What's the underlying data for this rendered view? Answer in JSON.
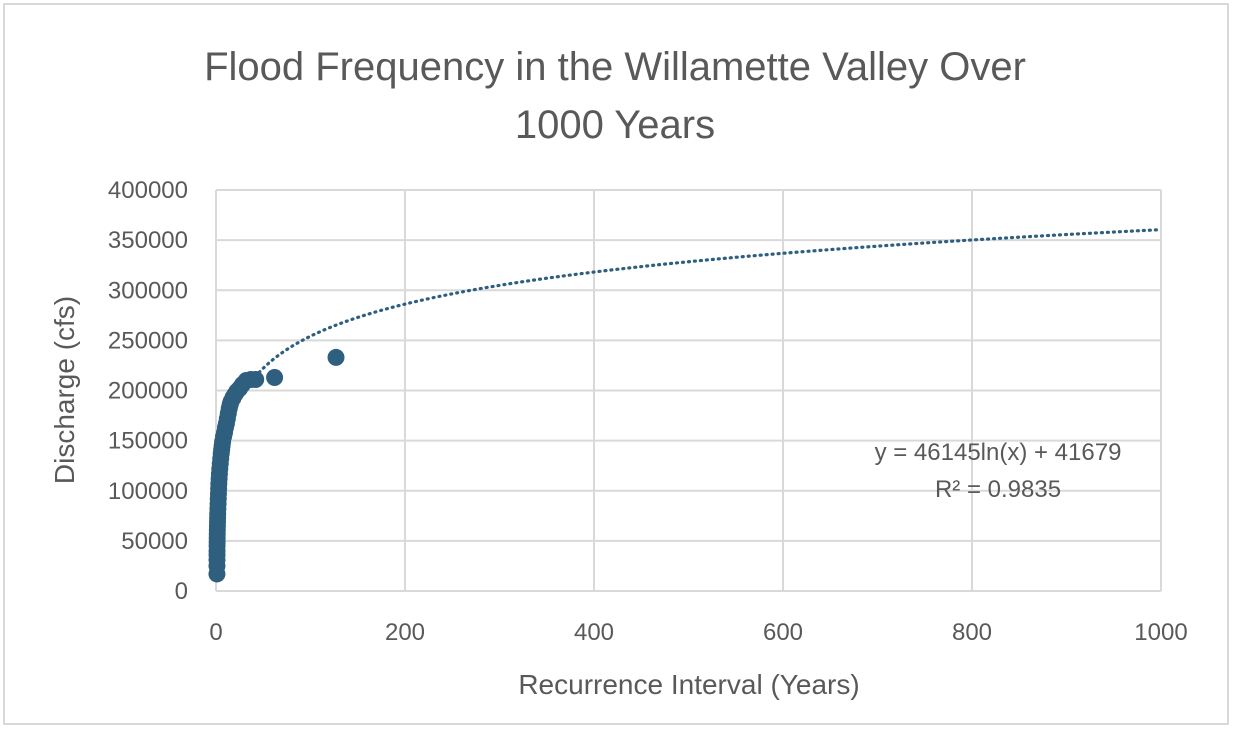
{
  "colors": {
    "point": "#2e5f7f",
    "grid": "#d9d9d9",
    "text": "#595959"
  },
  "chart_data": {
    "type": "scatter",
    "title": "Flood Frequency in the Willamette Valley Over 1000 Years",
    "title_lines": [
      "Flood Frequency in the Willamette Valley Over",
      "1000 Years"
    ],
    "xlabel": "Recurrence Interval (Years)",
    "ylabel": "Discharge (cfs)",
    "xlim": [
      0,
      1000
    ],
    "ylim": [
      0,
      400000
    ],
    "x_ticks": [
      "0",
      "200",
      "400",
      "600",
      "800",
      "1000"
    ],
    "y_ticks": [
      "0",
      "50000",
      "100000",
      "150000",
      "200000",
      "250000",
      "300000",
      "350000",
      "400000"
    ],
    "grid": true,
    "legend": "none",
    "trendline": {
      "type": "logarithmic",
      "a": 46145,
      "b": 41679,
      "equation": "y = 46145ln(x) + 41679",
      "r_squared": "R² = 0.9835"
    },
    "x": [
      1.0,
      1.02,
      1.05,
      1.08,
      1.1,
      1.15,
      1.2,
      1.25,
      1.3,
      1.4,
      1.5,
      1.6,
      1.7,
      1.8,
      2.0,
      2.2,
      2.4,
      2.6,
      2.8,
      3.0,
      3.3,
      3.6,
      4.0,
      4.5,
      5.0,
      5.5,
      6.0,
      6.5,
      7.0,
      8.0,
      9.0,
      10.0,
      11.0,
      12.0,
      13.0,
      14.0,
      15.0,
      16.0,
      18.0,
      20.0,
      22.0,
      25.0,
      28.0,
      32.0,
      37.0,
      42.0,
      62.0,
      127.0
    ],
    "y": [
      17000,
      25000,
      31000,
      36000,
      40000,
      45000,
      49000,
      53000,
      57000,
      61000,
      65000,
      69000,
      73000,
      77000,
      82000,
      87000,
      92000,
      97000,
      102000,
      107000,
      112000,
      117000,
      122000,
      127000,
      132000,
      137000,
      141000,
      145000,
      149000,
      154000,
      158000,
      163000,
      167000,
      172000,
      177000,
      182000,
      186000,
      189000,
      193000,
      196000,
      199000,
      202000,
      206000,
      210000,
      211000,
      211000,
      213000,
      233000
    ]
  }
}
